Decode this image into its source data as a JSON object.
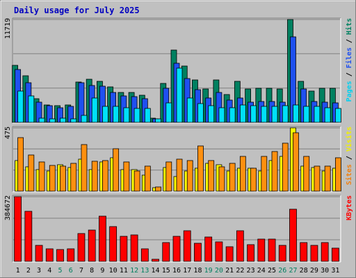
{
  "chart_data": [
    {
      "type": "bar",
      "title": "Daily usage for July 2025",
      "categories": [
        "1",
        "2",
        "3",
        "4",
        "5",
        "6",
        "7",
        "8",
        "9",
        "10",
        "11",
        "12",
        "13",
        "14",
        "15",
        "16",
        "17",
        "18",
        "19",
        "20",
        "21",
        "22",
        "23",
        "24",
        "25",
        "26",
        "27",
        "28",
        "29",
        "30",
        "31"
      ],
      "weekend_days": [
        "5",
        "6",
        "12",
        "13",
        "19",
        "20",
        "26",
        "27"
      ],
      "ylim": [
        0,
        11719
      ],
      "ytick_label": "11719",
      "axis_label_parts": [
        {
          "text": "Pages",
          "color": "#00d0f0"
        },
        {
          "text": " / ",
          "color": "#000000"
        },
        {
          "text": "Files",
          "color": "#1f50f0"
        },
        {
          "text": " / ",
          "color": "#000000"
        },
        {
          "text": "Hits",
          "color": "#008060"
        }
      ],
      "series": [
        {
          "name": "Hits",
          "color": "#008060",
          "values": [
            6500,
            5300,
            2700,
            2000,
            1900,
            2000,
            4600,
            4900,
            4700,
            4000,
            3400,
            3400,
            3100,
            500,
            4400,
            8200,
            6400,
            4800,
            3800,
            4800,
            3200,
            4700,
            3800,
            3900,
            3900,
            3800,
            11700,
            4700,
            3600,
            3900,
            3900
          ]
        },
        {
          "name": "Files",
          "color": "#1f50f0",
          "values": [
            6000,
            4500,
            2300,
            1900,
            1700,
            1800,
            4500,
            4200,
            4100,
            3400,
            3000,
            2900,
            2700,
            400,
            3900,
            6700,
            5000,
            3700,
            2800,
            3400,
            2500,
            2800,
            2300,
            2400,
            2400,
            2300,
            9700,
            3800,
            2400,
            2300,
            2200
          ]
        },
        {
          "name": "Pages",
          "color": "#00e0f8",
          "values": [
            3600,
            3000,
            500,
            400,
            500,
            400,
            800,
            2800,
            1800,
            1800,
            1700,
            1600,
            1600,
            400,
            2200,
            6200,
            2800,
            2100,
            1900,
            1700,
            1700,
            2000,
            1900,
            1800,
            1800,
            1900,
            2000,
            1800,
            1800,
            1700,
            1600
          ]
        }
      ]
    },
    {
      "type": "bar",
      "categories": [
        "1",
        "2",
        "3",
        "4",
        "5",
        "6",
        "7",
        "8",
        "9",
        "10",
        "11",
        "12",
        "13",
        "14",
        "15",
        "16",
        "17",
        "18",
        "19",
        "20",
        "21",
        "22",
        "23",
        "24",
        "25",
        "26",
        "27",
        "28",
        "29",
        "30",
        "31"
      ],
      "ylim": [
        0,
        475
      ],
      "ytick_label": "475",
      "axis_label_parts": [
        {
          "text": "Sites",
          "color": "#f08010"
        },
        {
          "text": " / ",
          "color": "#000000"
        },
        {
          "text": "Visits",
          "color": "#f0f000"
        }
      ],
      "series": [
        {
          "name": "Visits",
          "color": "#ffff00",
          "values": [
            230,
            182,
            160,
            150,
            200,
            176,
            238,
            160,
            220,
            250,
            160,
            160,
            120,
            25,
            180,
            110,
            150,
            170,
            210,
            200,
            150,
            170,
            171,
            150,
            230,
            260,
            475,
            190,
            180,
            150,
            170
          ]
        },
        {
          "name": "Sites",
          "color": "#ff9010",
          "values": [
            400,
            270,
            220,
            195,
            190,
            210,
            350,
            224,
            230,
            320,
            220,
            150,
            186,
            30,
            220,
            240,
            230,
            340,
            230,
            185,
            210,
            260,
            170,
            260,
            300,
            360,
            440,
            260,
            190,
            190,
            252
          ]
        }
      ]
    },
    {
      "type": "bar",
      "categories": [
        "1",
        "2",
        "3",
        "4",
        "5",
        "6",
        "7",
        "8",
        "9",
        "10",
        "11",
        "12",
        "13",
        "14",
        "15",
        "16",
        "17",
        "18",
        "19",
        "20",
        "21",
        "22",
        "23",
        "24",
        "25",
        "26",
        "27",
        "28",
        "29",
        "30",
        "31"
      ],
      "ylim": [
        0,
        384672
      ],
      "ytick_label": "384672",
      "axis_label_parts": [
        {
          "text": "KBytes",
          "color": "#ff0000"
        }
      ],
      "series": [
        {
          "name": "KBytes",
          "color": "#ff0000",
          "values": [
            384672,
            298000,
            94000,
            73000,
            72000,
            76000,
            165000,
            188000,
            270000,
            206000,
            150000,
            156000,
            73000,
            14000,
            111000,
            148000,
            181000,
            107000,
            143000,
            115000,
            88000,
            180000,
            99000,
            132000,
            133000,
            95000,
            312000,
            112000,
            95000,
            110000,
            80000
          ]
        }
      ]
    }
  ]
}
